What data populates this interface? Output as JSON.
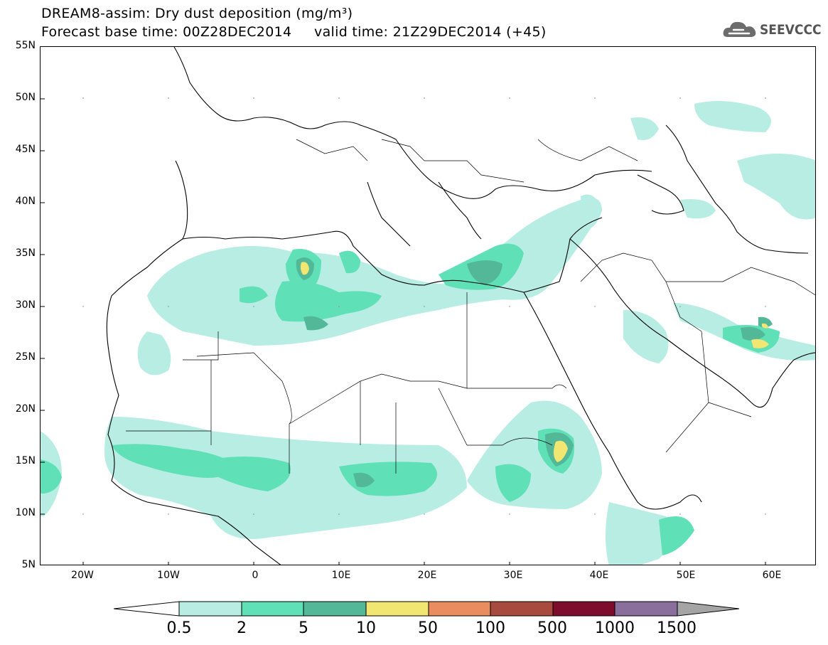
{
  "header": {
    "title_line1": "DREAM8-assim: Dry dust deposition (mg/m³)",
    "title_line2": "Forecast base time: 00Z28DEC2014     valid time: 21Z29DEC2014 (+45)",
    "logo_text": "SEEVCCC"
  },
  "map": {
    "lat_labels": [
      "55N",
      "50N",
      "45N",
      "40N",
      "35N",
      "30N",
      "25N",
      "20N",
      "15N",
      "10N",
      "5N"
    ],
    "lon_labels": [
      "20W",
      "10W",
      "0",
      "10E",
      "20E",
      "30E",
      "40E",
      "50E",
      "60E"
    ],
    "extent": {
      "lon_min": -25,
      "lon_max": 65,
      "lat_min": 5,
      "lat_max": 55
    }
  },
  "legend": {
    "labels": [
      "0.5",
      "2",
      "5",
      "10",
      "50",
      "100",
      "500",
      "1000",
      "1500"
    ],
    "colors": [
      "#b8ede4",
      "#5fe0b6",
      "#52b897",
      "#f2e673",
      "#e98c60",
      "#a84a3e",
      "#7d0d2b",
      "#8a6f9e",
      "#a5a5a5"
    ],
    "under_color": "#ffffff",
    "over_color": "#a5a5a5"
  }
}
